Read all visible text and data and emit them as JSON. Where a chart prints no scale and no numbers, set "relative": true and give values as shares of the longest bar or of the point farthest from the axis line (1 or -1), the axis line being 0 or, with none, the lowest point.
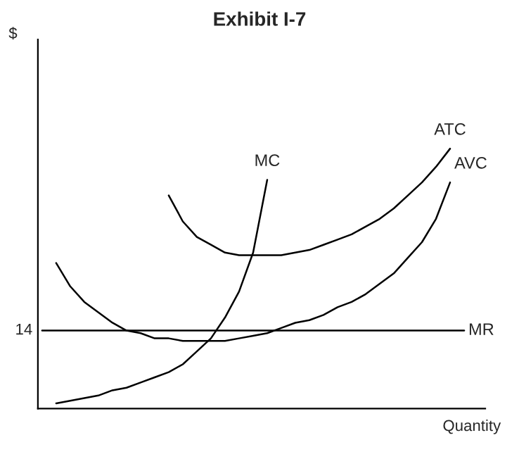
{
  "chart_data": {
    "type": "line",
    "title": "Exhibit I-7",
    "xlabel": "Quantity",
    "relative": true,
    "categories": [
      null,
      null,
      null,
      null,
      null,
      null,
      null,
      null,
      null,
      null,
      null,
      null,
      null,
      null,
      null,
      null,
      null,
      null,
      null,
      null,
      null,
      null,
      null,
      null,
      null,
      null,
      null,
      null,
      null,
      null,
      null,
      null
    ],
    "series": [
      {
        "name": "MC",
        "color": "#000000",
        "values": [
          null,
          0.02,
          0.03,
          0.04,
          0.05,
          0.07,
          0.08,
          0.1,
          0.12,
          0.14,
          0.17,
          0.22,
          0.27,
          0.35,
          0.45,
          0.6,
          0.88,
          null,
          null,
          null,
          null,
          null,
          null,
          null,
          null,
          null,
          null,
          null,
          null,
          null,
          null,
          null
        ]
      },
      {
        "name": "ATC",
        "color": "#000000",
        "values": [
          null,
          null,
          null,
          null,
          null,
          null,
          null,
          null,
          null,
          0.82,
          0.72,
          0.66,
          0.63,
          0.6,
          0.59,
          0.59,
          0.59,
          0.59,
          0.6,
          0.61,
          0.63,
          0.65,
          0.67,
          0.7,
          0.73,
          0.77,
          0.82,
          0.87,
          0.93,
          1.0,
          null,
          null
        ]
      },
      {
        "name": "AVC",
        "color": "#000000",
        "values": [
          null,
          0.56,
          0.47,
          0.41,
          0.37,
          0.33,
          0.3,
          0.29,
          0.27,
          0.27,
          0.26,
          0.26,
          0.26,
          0.26,
          0.27,
          0.28,
          0.29,
          0.31,
          0.33,
          0.34,
          0.36,
          0.39,
          0.41,
          0.44,
          0.48,
          0.52,
          0.58,
          0.64,
          0.73,
          0.87,
          null,
          null
        ]
      },
      {
        "name": "MR",
        "color": "#000000",
        "values": [
          0.3,
          0.3,
          0.3,
          0.3,
          0.3,
          0.3,
          0.3,
          0.3,
          0.3,
          0.3,
          0.3,
          0.3,
          0.3,
          0.3,
          0.3,
          0.3,
          0.3,
          0.3,
          0.3,
          0.3,
          0.3,
          0.3,
          0.3,
          0.3,
          0.3,
          0.3,
          0.3,
          0.3,
          0.3,
          0.3,
          0.3,
          null
        ]
      }
    ],
    "annotations": [
      "14",
      "$"
    ],
    "legend": false
  }
}
